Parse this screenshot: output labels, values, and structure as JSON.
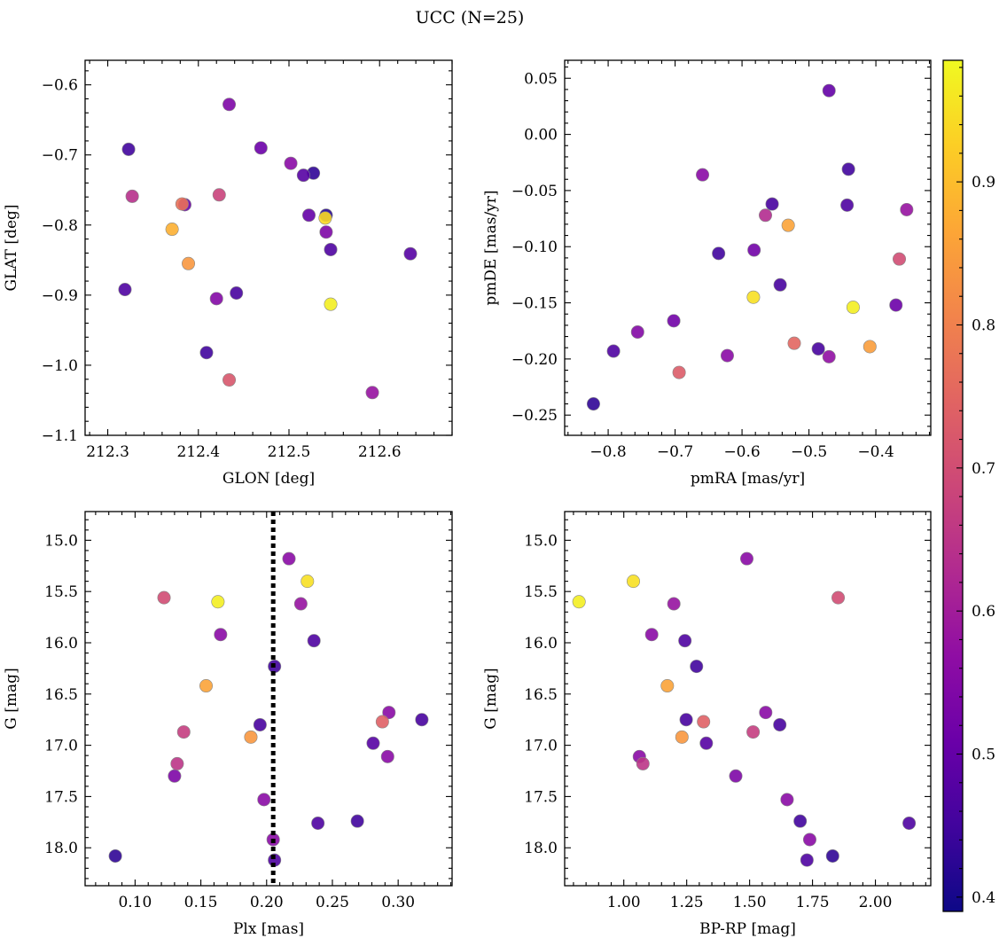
{
  "figure": {
    "title": "UCC (N=25)"
  },
  "colorbar": {
    "min": 0.39,
    "max": 0.985,
    "ticks": [
      0.4,
      0.5,
      0.6,
      0.7,
      0.8,
      0.9
    ],
    "colormap": "plasma"
  },
  "chart_data": [
    {
      "type": "scatter",
      "name": "panel-glon-glat",
      "xlabel": "GLON [deg]",
      "ylabel": "GLAT [deg]",
      "xlim": [
        212.275,
        212.68
      ],
      "ylim": [
        -1.1,
        -0.565
      ],
      "xticks": [
        212.3,
        212.4,
        212.5,
        212.6
      ],
      "yticks": [
        -1.1,
        -1.0,
        -0.9,
        -0.8,
        -0.7,
        -0.6
      ],
      "vline": null,
      "points": [
        {
          "x": 212.434,
          "y": -0.628,
          "c": 0.54
        },
        {
          "x": 212.323,
          "y": -0.692,
          "c": 0.45
        },
        {
          "x": 212.469,
          "y": -0.69,
          "c": 0.51
        },
        {
          "x": 212.502,
          "y": -0.712,
          "c": 0.56
        },
        {
          "x": 212.527,
          "y": -0.726,
          "c": 0.43
        },
        {
          "x": 212.516,
          "y": -0.729,
          "c": 0.48
        },
        {
          "x": 212.327,
          "y": -0.759,
          "c": 0.64
        },
        {
          "x": 212.423,
          "y": -0.757,
          "c": 0.68
        },
        {
          "x": 212.385,
          "y": -0.771,
          "c": 0.51
        },
        {
          "x": 212.382,
          "y": -0.77,
          "c": 0.77
        },
        {
          "x": 212.522,
          "y": -0.786,
          "c": 0.5
        },
        {
          "x": 212.541,
          "y": -0.786,
          "c": 0.42
        },
        {
          "x": 212.54,
          "y": -0.79,
          "c": 0.94
        },
        {
          "x": 212.371,
          "y": -0.806,
          "c": 0.88
        },
        {
          "x": 212.541,
          "y": -0.81,
          "c": 0.54
        },
        {
          "x": 212.546,
          "y": -0.835,
          "c": 0.47
        },
        {
          "x": 212.634,
          "y": -0.841,
          "c": 0.48
        },
        {
          "x": 212.389,
          "y": -0.855,
          "c": 0.84
        },
        {
          "x": 212.319,
          "y": -0.892,
          "c": 0.47
        },
        {
          "x": 212.442,
          "y": -0.897,
          "c": 0.46
        },
        {
          "x": 212.42,
          "y": -0.905,
          "c": 0.55
        },
        {
          "x": 212.546,
          "y": -0.913,
          "c": 0.97
        },
        {
          "x": 212.409,
          "y": -0.982,
          "c": 0.45
        },
        {
          "x": 212.434,
          "y": -1.021,
          "c": 0.72
        },
        {
          "x": 212.592,
          "y": -1.039,
          "c": 0.58
        }
      ]
    },
    {
      "type": "scatter",
      "name": "panel-pm",
      "xlabel": "pmRA [mas/yr]",
      "ylabel": "pmDE [mas/yr]",
      "xlim": [
        -0.865,
        -0.318
      ],
      "ylim": [
        -0.268,
        0.066
      ],
      "xticks": [
        -0.8,
        -0.7,
        -0.6,
        -0.5,
        -0.4
      ],
      "yticks": [
        -0.25,
        -0.2,
        -0.15,
        -0.1,
        -0.05,
        0.0,
        0.05
      ],
      "vline": null,
      "points": [
        {
          "x": -0.47,
          "y": 0.039,
          "c": 0.5
        },
        {
          "x": -0.441,
          "y": -0.031,
          "c": 0.45
        },
        {
          "x": -0.659,
          "y": -0.036,
          "c": 0.56
        },
        {
          "x": -0.555,
          "y": -0.062,
          "c": 0.46
        },
        {
          "x": -0.443,
          "y": -0.063,
          "c": 0.47
        },
        {
          "x": -0.354,
          "y": -0.067,
          "c": 0.58
        },
        {
          "x": -0.565,
          "y": -0.072,
          "c": 0.63
        },
        {
          "x": -0.531,
          "y": -0.081,
          "c": 0.86
        },
        {
          "x": -0.582,
          "y": -0.103,
          "c": 0.52
        },
        {
          "x": -0.635,
          "y": -0.106,
          "c": 0.45
        },
        {
          "x": -0.365,
          "y": -0.111,
          "c": 0.7
        },
        {
          "x": -0.543,
          "y": -0.134,
          "c": 0.46
        },
        {
          "x": -0.583,
          "y": -0.145,
          "c": 0.95
        },
        {
          "x": -0.37,
          "y": -0.152,
          "c": 0.51
        },
        {
          "x": -0.434,
          "y": -0.154,
          "c": 0.97
        },
        {
          "x": -0.702,
          "y": -0.166,
          "c": 0.52
        },
        {
          "x": -0.756,
          "y": -0.176,
          "c": 0.55
        },
        {
          "x": -0.522,
          "y": -0.186,
          "c": 0.75
        },
        {
          "x": -0.409,
          "y": -0.189,
          "c": 0.85
        },
        {
          "x": -0.486,
          "y": -0.191,
          "c": 0.46
        },
        {
          "x": -0.792,
          "y": -0.193,
          "c": 0.47
        },
        {
          "x": -0.622,
          "y": -0.197,
          "c": 0.56
        },
        {
          "x": -0.47,
          "y": -0.198,
          "c": 0.57
        },
        {
          "x": -0.694,
          "y": -0.212,
          "c": 0.73
        },
        {
          "x": -0.822,
          "y": -0.24,
          "c": 0.43
        }
      ]
    },
    {
      "type": "scatter",
      "name": "panel-plx-g",
      "xlabel": "Plx [mas]",
      "ylabel": "G [mag]",
      "xlim": [
        0.062,
        0.341
      ],
      "ylim": [
        18.37,
        14.72
      ],
      "y_inverted": true,
      "xticks": [
        0.1,
        0.15,
        0.2,
        0.25,
        0.3
      ],
      "yticks": [
        15.0,
        15.5,
        16.0,
        16.5,
        17.0,
        17.5,
        18.0
      ],
      "vline": 0.205,
      "points": [
        {
          "x": 0.217,
          "y": 15.18,
          "c": 0.56
        },
        {
          "x": 0.231,
          "y": 15.4,
          "c": 0.95
        },
        {
          "x": 0.122,
          "y": 15.56,
          "c": 0.7
        },
        {
          "x": 0.163,
          "y": 15.6,
          "c": 0.97
        },
        {
          "x": 0.226,
          "y": 15.62,
          "c": 0.58
        },
        {
          "x": 0.165,
          "y": 15.92,
          "c": 0.56
        },
        {
          "x": 0.236,
          "y": 15.98,
          "c": 0.47
        },
        {
          "x": 0.206,
          "y": 16.23,
          "c": 0.45
        },
        {
          "x": 0.154,
          "y": 16.42,
          "c": 0.86
        },
        {
          "x": 0.293,
          "y": 16.68,
          "c": 0.56
        },
        {
          "x": 0.318,
          "y": 16.75,
          "c": 0.46
        },
        {
          "x": 0.288,
          "y": 16.77,
          "c": 0.74
        },
        {
          "x": 0.195,
          "y": 16.8,
          "c": 0.46
        },
        {
          "x": 0.137,
          "y": 16.87,
          "c": 0.67
        },
        {
          "x": 0.188,
          "y": 16.92,
          "c": 0.84
        },
        {
          "x": 0.281,
          "y": 16.98,
          "c": 0.48
        },
        {
          "x": 0.292,
          "y": 17.11,
          "c": 0.56
        },
        {
          "x": 0.132,
          "y": 17.18,
          "c": 0.65
        },
        {
          "x": 0.13,
          "y": 17.3,
          "c": 0.54
        },
        {
          "x": 0.198,
          "y": 17.53,
          "c": 0.56
        },
        {
          "x": 0.269,
          "y": 17.74,
          "c": 0.45
        },
        {
          "x": 0.239,
          "y": 17.76,
          "c": 0.47
        },
        {
          "x": 0.205,
          "y": 17.92,
          "c": 0.56
        },
        {
          "x": 0.085,
          "y": 18.08,
          "c": 0.43
        },
        {
          "x": 0.206,
          "y": 18.12,
          "c": 0.47
        }
      ]
    },
    {
      "type": "scatter",
      "name": "panel-cmd",
      "xlabel": "BP-RP [mag]",
      "ylabel": "G [mag]",
      "xlim": [
        0.765,
        2.22
      ],
      "ylim": [
        18.37,
        14.72
      ],
      "y_inverted": true,
      "xticks": [
        1.0,
        1.25,
        1.5,
        1.75,
        2.0
      ],
      "yticks": [
        15.0,
        15.5,
        16.0,
        16.5,
        17.0,
        17.5,
        18.0
      ],
      "vline": null,
      "points": [
        {
          "x": 1.489,
          "y": 15.18,
          "c": 0.56
        },
        {
          "x": 1.038,
          "y": 15.4,
          "c": 0.95
        },
        {
          "x": 1.852,
          "y": 15.56,
          "c": 0.7
        },
        {
          "x": 0.822,
          "y": 15.6,
          "c": 0.97
        },
        {
          "x": 1.199,
          "y": 15.62,
          "c": 0.58
        },
        {
          "x": 1.111,
          "y": 15.92,
          "c": 0.56
        },
        {
          "x": 1.243,
          "y": 15.98,
          "c": 0.47
        },
        {
          "x": 1.289,
          "y": 16.23,
          "c": 0.45
        },
        {
          "x": 1.173,
          "y": 16.42,
          "c": 0.86
        },
        {
          "x": 1.564,
          "y": 16.68,
          "c": 0.56
        },
        {
          "x": 1.248,
          "y": 16.75,
          "c": 0.46
        },
        {
          "x": 1.317,
          "y": 16.77,
          "c": 0.74
        },
        {
          "x": 1.62,
          "y": 16.8,
          "c": 0.46
        },
        {
          "x": 1.514,
          "y": 16.87,
          "c": 0.67
        },
        {
          "x": 1.231,
          "y": 16.92,
          "c": 0.84
        },
        {
          "x": 1.328,
          "y": 16.98,
          "c": 0.48
        },
        {
          "x": 1.062,
          "y": 17.11,
          "c": 0.56
        },
        {
          "x": 1.076,
          "y": 17.18,
          "c": 0.65
        },
        {
          "x": 1.445,
          "y": 17.3,
          "c": 0.54
        },
        {
          "x": 1.649,
          "y": 17.53,
          "c": 0.56
        },
        {
          "x": 1.701,
          "y": 17.74,
          "c": 0.45
        },
        {
          "x": 2.134,
          "y": 17.76,
          "c": 0.47
        },
        {
          "x": 1.739,
          "y": 17.92,
          "c": 0.56
        },
        {
          "x": 1.83,
          "y": 18.08,
          "c": 0.43
        },
        {
          "x": 1.728,
          "y": 18.12,
          "c": 0.47
        }
      ]
    }
  ]
}
